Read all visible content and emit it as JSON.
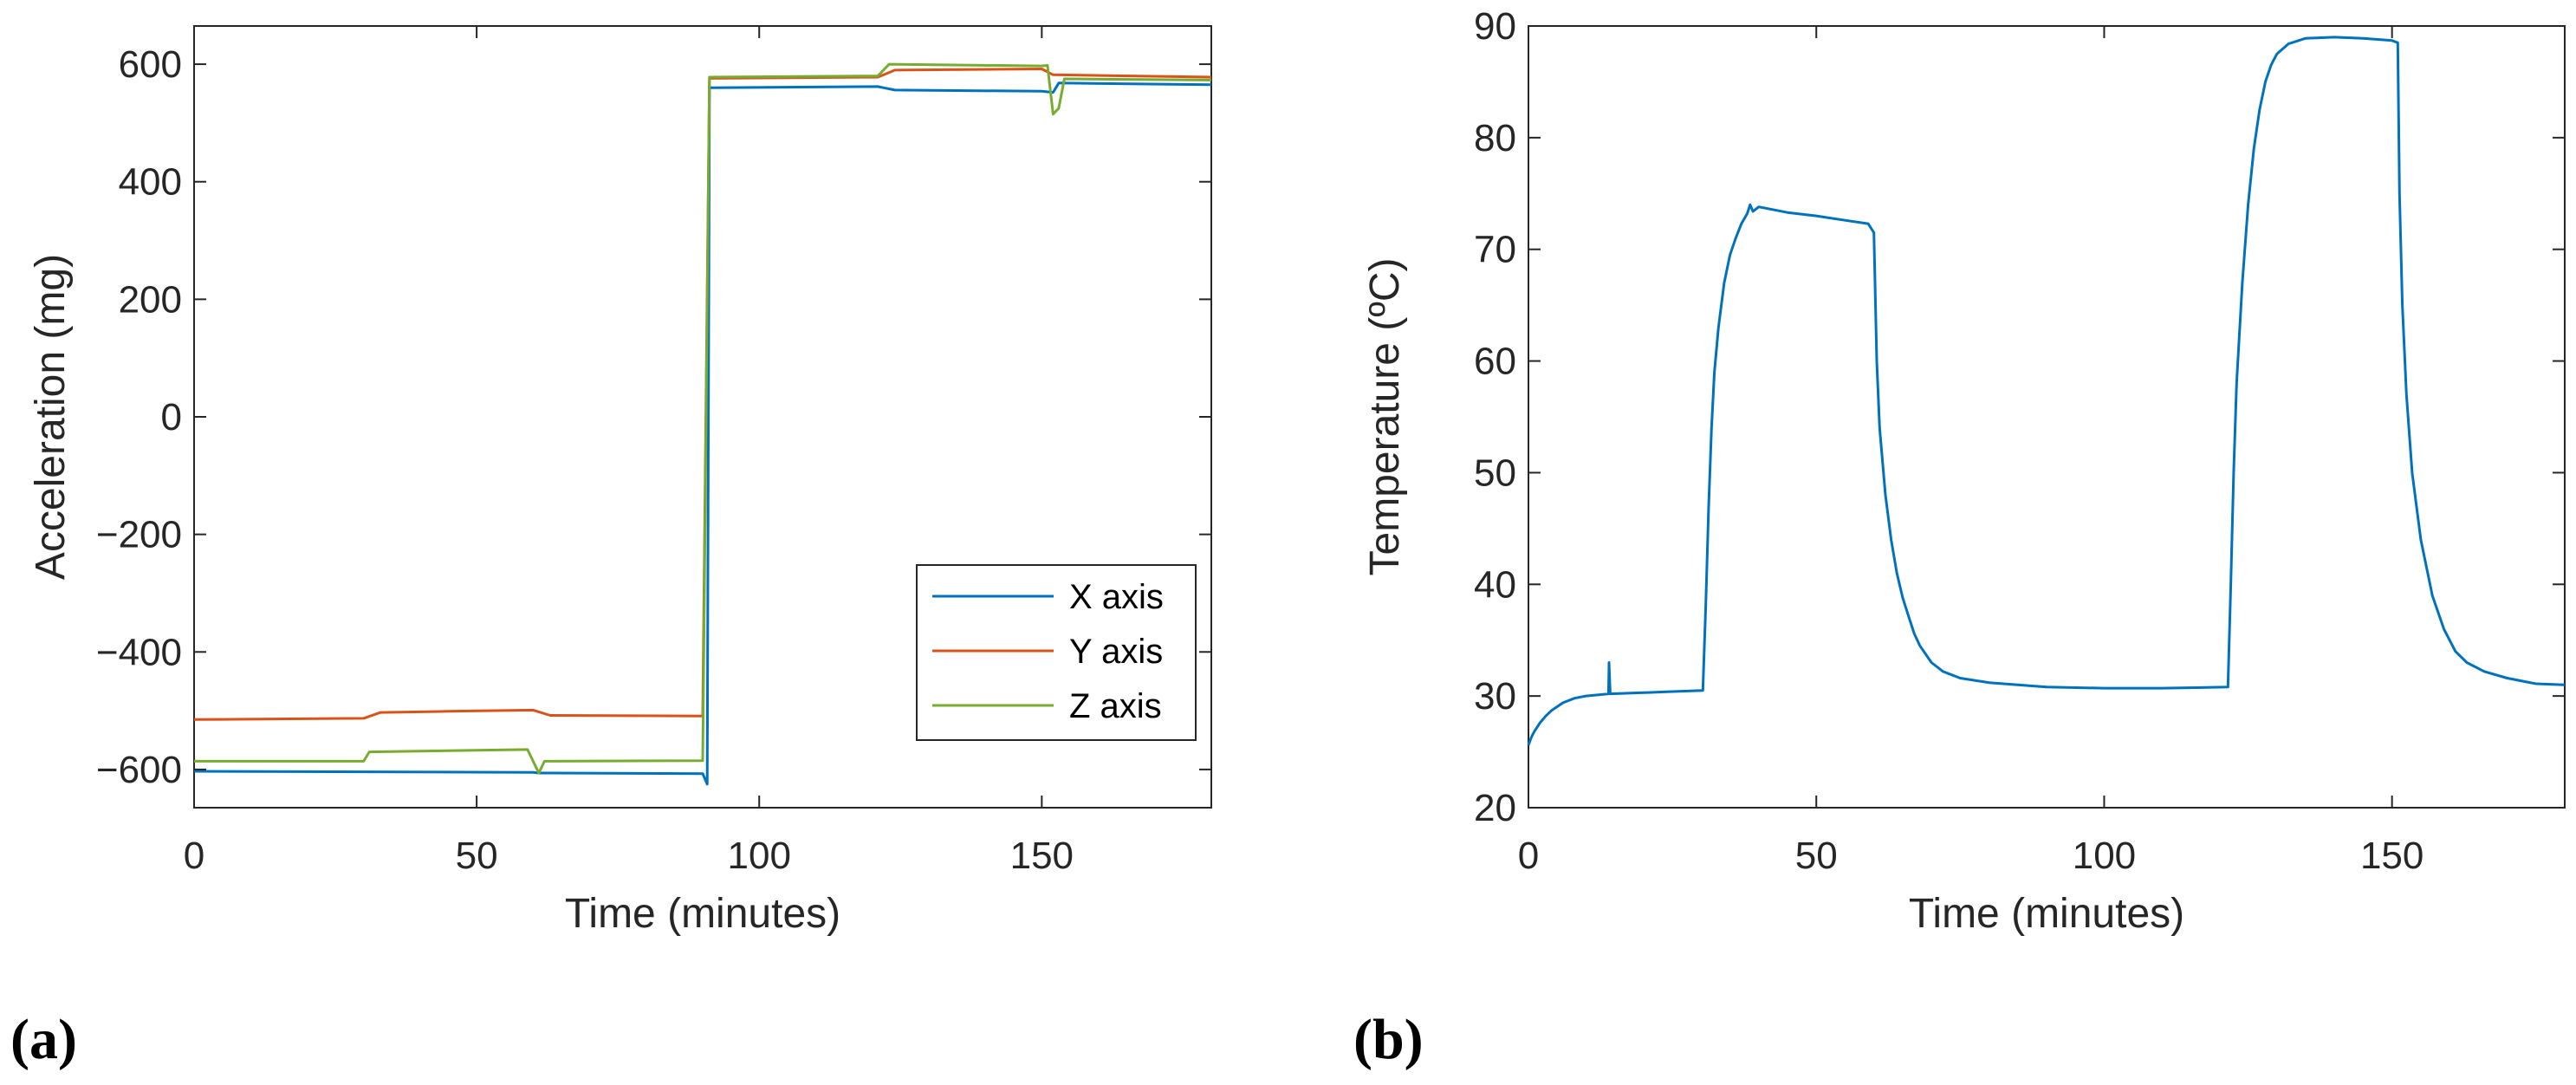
{
  "panel_labels": {
    "a": "(a)",
    "b": "(b)"
  },
  "chart_data": [
    {
      "type": "line",
      "title": "",
      "xlabel": "Time (minutes)",
      "ylabel": "Acceleration (mg)",
      "xlim": [
        0,
        180
      ],
      "ylim": [
        -665,
        665
      ],
      "xticks": [
        0,
        50,
        100,
        150
      ],
      "yticks": [
        -600,
        -400,
        -200,
        0,
        200,
        400,
        600
      ],
      "xtick_labels": [
        "0",
        "50",
        "100",
        "150"
      ],
      "ytick_labels": [
        "−600",
        "−400",
        "−200",
        "0",
        "200",
        "400",
        "600"
      ],
      "grid": false,
      "legend_position": "bottom-right",
      "series": [
        {
          "name": "X axis",
          "color": "#0072BD",
          "points": [
            [
              0,
              -603
            ],
            [
              30,
              -604
            ],
            [
              60,
              -605
            ],
            [
              61,
              -606
            ],
            [
              90,
              -607
            ],
            [
              90.8,
              -625
            ],
            [
              91.2,
              560
            ],
            [
              121,
              562
            ],
            [
              124,
              556
            ],
            [
              150,
              554
            ],
            [
              152,
              552
            ],
            [
              153,
              568
            ],
            [
              180,
              565
            ]
          ]
        },
        {
          "name": "Y axis",
          "color": "#D95319",
          "points": [
            [
              0,
              -515
            ],
            [
              30,
              -513
            ],
            [
              33,
              -503
            ],
            [
              45,
              -501
            ],
            [
              60,
              -499
            ],
            [
              63,
              -508
            ],
            [
              90,
              -509
            ],
            [
              91.2,
              576
            ],
            [
              121,
              578
            ],
            [
              124,
              590
            ],
            [
              150,
              592
            ],
            [
              152,
              582
            ],
            [
              180,
              578
            ]
          ]
        },
        {
          "name": "Z axis",
          "color": "#77AC30",
          "points": [
            [
              0,
              -586
            ],
            [
              30,
              -586
            ],
            [
              31,
              -570
            ],
            [
              59,
              -566
            ],
            [
              61,
              -606
            ],
            [
              62,
              -586
            ],
            [
              90,
              -585
            ],
            [
              91.2,
              578
            ],
            [
              121,
              580
            ],
            [
              123,
              600
            ],
            [
              150,
              597
            ],
            [
              151,
              598
            ],
            [
              152,
              515
            ],
            [
              153,
              525
            ],
            [
              154,
              575
            ],
            [
              180,
              573
            ]
          ]
        }
      ]
    },
    {
      "type": "line",
      "title": "",
      "xlabel": "Time (minutes)",
      "ylabel": "Temperature (ºC)",
      "xlim": [
        0,
        180
      ],
      "ylim": [
        20,
        90
      ],
      "xticks": [
        0,
        50,
        100,
        150
      ],
      "yticks": [
        20,
        30,
        40,
        50,
        60,
        70,
        80,
        90
      ],
      "xtick_labels": [
        "0",
        "50",
        "100",
        "150"
      ],
      "ytick_labels": [
        "20",
        "30",
        "40",
        "50",
        "60",
        "70",
        "80",
        "90"
      ],
      "grid": false,
      "series": [
        {
          "name": "Temperature",
          "color": "#0072BD",
          "points": [
            [
              0,
              25.6
            ],
            [
              0.5,
              26.3
            ],
            [
              1,
              26.8
            ],
            [
              2,
              27.6
            ],
            [
              3,
              28.2
            ],
            [
              4,
              28.7
            ],
            [
              6,
              29.4
            ],
            [
              8,
              29.8
            ],
            [
              10,
              30.0
            ],
            [
              12,
              30.1
            ],
            [
              13.9,
              30.2
            ],
            [
              14,
              33.0
            ],
            [
              14.2,
              30.2
            ],
            [
              20,
              30.3
            ],
            [
              25,
              30.4
            ],
            [
              30.3,
              30.5
            ],
            [
              30.8,
              38
            ],
            [
              31.3,
              47
            ],
            [
              31.8,
              54
            ],
            [
              32.3,
              59
            ],
            [
              33,
              63
            ],
            [
              34,
              67
            ],
            [
              35,
              69.5
            ],
            [
              36,
              71
            ],
            [
              37,
              72.3
            ],
            [
              38,
              73.2
            ],
            [
              38.5,
              74.0
            ],
            [
              39,
              73.4
            ],
            [
              40,
              73.8
            ],
            [
              45,
              73.3
            ],
            [
              50,
              73.0
            ],
            [
              55,
              72.6
            ],
            [
              59,
              72.3
            ],
            [
              60,
              71.5
            ],
            [
              60.5,
              60
            ],
            [
              61,
              54
            ],
            [
              62,
              48
            ],
            [
              63,
              44
            ],
            [
              64,
              41
            ],
            [
              65,
              38.8
            ],
            [
              66,
              37.2
            ],
            [
              67,
              35.6
            ],
            [
              68,
              34.5
            ],
            [
              70,
              33.0
            ],
            [
              72,
              32.2
            ],
            [
              75,
              31.6
            ],
            [
              80,
              31.2
            ],
            [
              85,
              31.0
            ],
            [
              90,
              30.8
            ],
            [
              100,
              30.7
            ],
            [
              110,
              30.7
            ],
            [
              121.5,
              30.8
            ],
            [
              122,
              40
            ],
            [
              122.5,
              50
            ],
            [
              123,
              58
            ],
            [
              124,
              67
            ],
            [
              125,
              74
            ],
            [
              126,
              79
            ],
            [
              127,
              82.5
            ],
            [
              128,
              85
            ],
            [
              129,
              86.5
            ],
            [
              130,
              87.5
            ],
            [
              132,
              88.4
            ],
            [
              135,
              88.9
            ],
            [
              140,
              89.0
            ],
            [
              145,
              88.9
            ],
            [
              150,
              88.7
            ],
            [
              151,
              88.5
            ],
            [
              151.3,
              75
            ],
            [
              151.8,
              65
            ],
            [
              152.5,
              57
            ],
            [
              153.5,
              50
            ],
            [
              155,
              44
            ],
            [
              157,
              39
            ],
            [
              159,
              36
            ],
            [
              161,
              34
            ],
            [
              163,
              33
            ],
            [
              166,
              32.2
            ],
            [
              170,
              31.6
            ],
            [
              175,
              31.1
            ],
            [
              180,
              31.0
            ]
          ]
        }
      ]
    }
  ]
}
